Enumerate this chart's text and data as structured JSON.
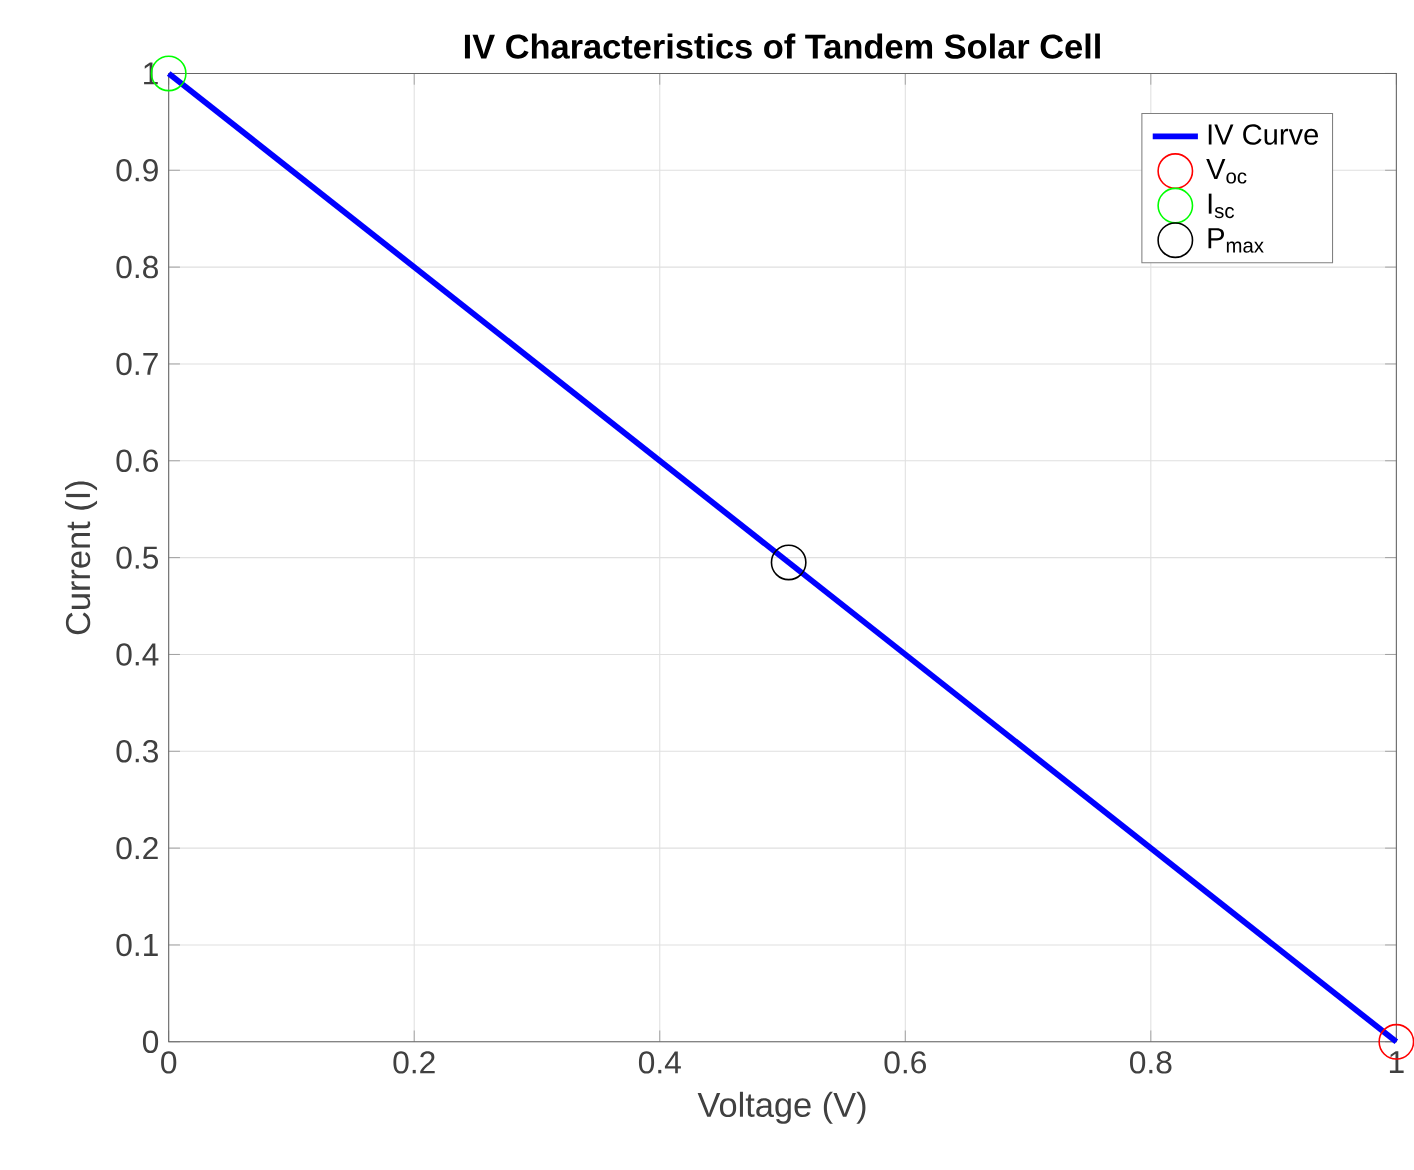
{
  "chart_data": {
    "type": "line",
    "title": "IV Characteristics of Tandem Solar Cell",
    "xlabel": "Voltage (V)",
    "ylabel": "Current (I)",
    "xlim": [
      0,
      1
    ],
    "ylim": [
      0,
      1
    ],
    "xticks": [
      0,
      0.2,
      0.4,
      0.6,
      0.8,
      1
    ],
    "yticks": [
      0,
      0.1,
      0.2,
      0.3,
      0.4,
      0.5,
      0.6,
      0.7,
      0.8,
      0.9,
      1
    ],
    "grid": true,
    "legend": "top right",
    "series": [
      {
        "name": "IV Curve",
        "color": "#0000ff",
        "x": [
          0,
          1
        ],
        "values": [
          1,
          0
        ]
      },
      {
        "name": "V$_{oc}$",
        "type": "scatter",
        "marker": "circle",
        "color": "#ff0000",
        "x": [
          1
        ],
        "values": [
          0
        ]
      },
      {
        "name": "I$_{sc}$",
        "type": "scatter",
        "marker": "circle",
        "color": "#00ff00",
        "x": [
          0
        ],
        "values": [
          1
        ]
      },
      {
        "name": "P$_{max}$",
        "type": "scatter",
        "marker": "circle",
        "color": "#000000",
        "x": [
          0.505
        ],
        "values": [
          0.495
        ]
      }
    ]
  }
}
